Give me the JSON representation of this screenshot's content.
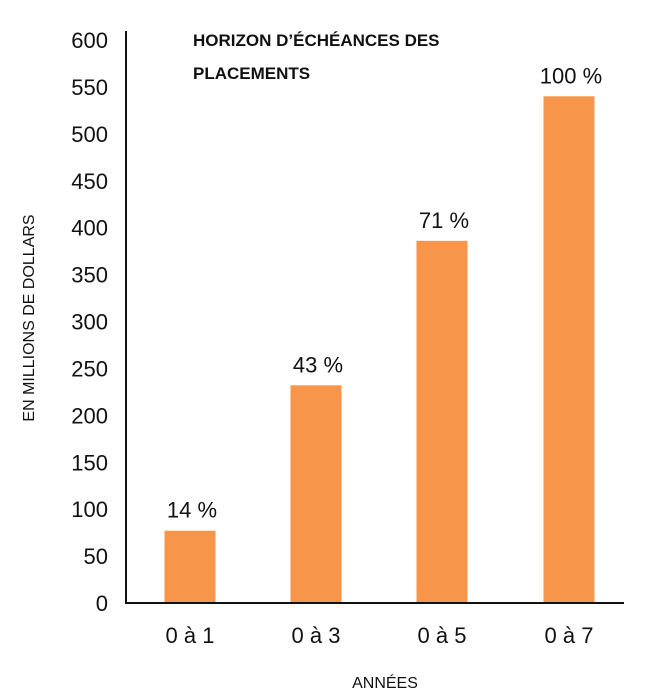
{
  "chart_data": {
    "type": "bar",
    "title_lines": [
      "HORIZON D’ÉCHÉANCES DES",
      "PLACEMENTS"
    ],
    "xlabel": "ANNÉES",
    "ylabel": "EN MILLIONS DE DOLLARS",
    "categories": [
      "0 à 1",
      "0 à 3",
      "0 à 5",
      "0 à 7"
    ],
    "values": [
      77,
      232,
      386,
      540
    ],
    "data_labels": [
      "14 %",
      "43 %",
      "71 %",
      "100 %"
    ],
    "ylim": [
      0,
      600
    ],
    "yticks": [
      0,
      50,
      100,
      150,
      200,
      250,
      300,
      350,
      400,
      450,
      500,
      550,
      600
    ],
    "bar_color": "#F7964A",
    "grid": false,
    "legend": "none"
  }
}
